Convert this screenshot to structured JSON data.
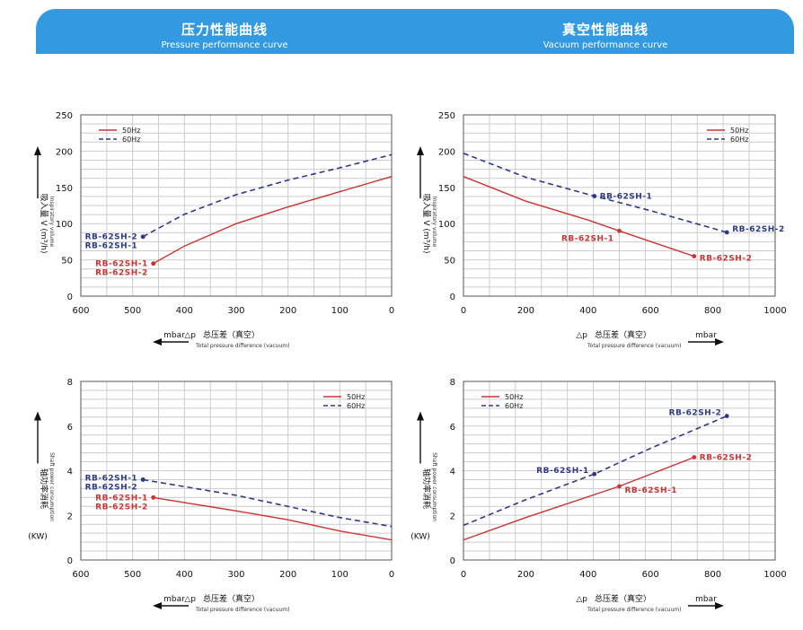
{
  "header": {
    "left_zh": "压力性能曲线",
    "left_en": "Pressure performance curve",
    "right_zh": "真空性能曲线",
    "right_en": "Vacuum performance curve"
  },
  "colors": {
    "banner": "#3399e0",
    "s50": "#cc3333",
    "s60": "#2e3a86",
    "grid": "#cccccc"
  },
  "chart_data": [
    {
      "type": "line",
      "title": "",
      "xlim": [
        600,
        0
      ],
      "ylim": [
        0,
        250
      ],
      "xticks": [
        600,
        500,
        400,
        300,
        200,
        100,
        0
      ],
      "yticks": [
        0,
        50,
        100,
        150,
        200,
        250
      ],
      "ylabel_zh": "吸入量 V (m³/h)",
      "ylabel_en": "Inspiratory volume",
      "unit": "",
      "xunit": "mbar",
      "xlabel_zh": "总压差（真空）",
      "xlabel_en": "Total pressure difference (vacuum)",
      "xlabel_delta": "△p",
      "legend": "top-left",
      "series": [
        {
          "name": "50Hz",
          "dash": false,
          "points": [
            [
              460,
              45
            ],
            [
              400,
              69
            ],
            [
              300,
              100
            ],
            [
              200,
              123
            ],
            [
              100,
              144
            ],
            [
              0,
              165
            ]
          ]
        },
        {
          "name": "60Hz",
          "dash": true,
          "points": [
            [
              480,
              82
            ],
            [
              400,
              113
            ],
            [
              300,
              140
            ],
            [
              200,
              160
            ],
            [
              100,
              177
            ],
            [
              0,
              195
            ]
          ]
        }
      ],
      "annotations": [
        {
          "text": "RB-62SH-2",
          "series": 1,
          "at": [
            480,
            82
          ],
          "side": "left",
          "dy": 0
        },
        {
          "text": "RB-62SH-1",
          "series": 1,
          "at": [
            480,
            82
          ],
          "side": "left",
          "dy": 10
        },
        {
          "text": "RB-62SH-1",
          "series": 0,
          "at": [
            460,
            45
          ],
          "side": "left",
          "dy": 0
        },
        {
          "text": "RB-62SH-2",
          "series": 0,
          "at": [
            460,
            45
          ],
          "side": "left",
          "dy": 10
        }
      ]
    },
    {
      "type": "line",
      "title": "",
      "xlim": [
        0,
        1000
      ],
      "ylim": [
        0,
        250
      ],
      "xticks": [
        0,
        200,
        400,
        600,
        800,
        1000
      ],
      "yticks": [
        0,
        50,
        100,
        150,
        200,
        250
      ],
      "ylabel_zh": "吸入量 V (m³/h)",
      "ylabel_en": "Inspiratory volume",
      "unit": "",
      "xunit": "mbar",
      "xlabel_zh": "总压差（真空）",
      "xlabel_en": "Total pressure difference (vacuum)",
      "xlabel_delta": "△p",
      "legend": "top-right",
      "series": [
        {
          "name": "50Hz",
          "dash": false,
          "points": [
            [
              0,
              165
            ],
            [
              200,
              131
            ],
            [
              400,
              105
            ],
            [
              500,
              90
            ],
            [
              740,
              55
            ]
          ]
        },
        {
          "name": "60Hz",
          "dash": true,
          "points": [
            [
              0,
              197
            ],
            [
              200,
              164
            ],
            [
              420,
              138
            ],
            [
              600,
              118
            ],
            [
              845,
              88
            ]
          ]
        }
      ],
      "annotations": [
        {
          "text": "RB-62SH-1",
          "series": 1,
          "at": [
            420,
            138
          ],
          "side": "right",
          "dy": 0
        },
        {
          "text": "RB-62SH-2",
          "series": 1,
          "at": [
            845,
            88
          ],
          "side": "right",
          "dy": -4
        },
        {
          "text": "RB-62SH-1",
          "series": 0,
          "at": [
            500,
            90
          ],
          "side": "left",
          "dy": 8
        },
        {
          "text": "RB-62SH-2",
          "series": 0,
          "at": [
            740,
            55
          ],
          "side": "right",
          "dy": 2
        }
      ]
    },
    {
      "type": "line",
      "title": "",
      "xlim": [
        600,
        0
      ],
      "ylim": [
        0,
        8
      ],
      "xticks": [
        600,
        500,
        400,
        300,
        200,
        100,
        0
      ],
      "yticks": [
        0,
        2,
        4,
        6,
        8
      ],
      "ylabel_zh": "轴功率消耗",
      "ylabel_en": "Shaft power consumption",
      "unit": "(KW)",
      "xunit": "mbar",
      "xlabel_zh": "总压差（真空）",
      "xlabel_en": "Total pressure difference (vacuum)",
      "xlabel_delta": "△p",
      "legend": "top-right",
      "series": [
        {
          "name": "50Hz",
          "dash": false,
          "points": [
            [
              460,
              2.8
            ],
            [
              300,
              2.2
            ],
            [
              200,
              1.8
            ],
            [
              100,
              1.3
            ],
            [
              0,
              0.9
            ]
          ]
        },
        {
          "name": "60Hz",
          "dash": true,
          "points": [
            [
              480,
              3.6
            ],
            [
              300,
              2.9
            ],
            [
              200,
              2.4
            ],
            [
              100,
              1.9
            ],
            [
              0,
              1.5
            ]
          ]
        }
      ],
      "annotations": [
        {
          "text": "RB-62SH-1",
          "series": 1,
          "at": [
            480,
            3.6
          ],
          "side": "left",
          "dy": -2
        },
        {
          "text": "RB-62SH-2",
          "series": 1,
          "at": [
            480,
            3.6
          ],
          "side": "left",
          "dy": 8
        },
        {
          "text": "RB-62SH-1",
          "series": 0,
          "at": [
            460,
            2.8
          ],
          "side": "left",
          "dy": 0
        },
        {
          "text": "RB-62SH-2",
          "series": 0,
          "at": [
            460,
            2.8
          ],
          "side": "left",
          "dy": 10
        }
      ]
    },
    {
      "type": "line",
      "title": "",
      "xlim": [
        0,
        1000
      ],
      "ylim": [
        0,
        8
      ],
      "xticks": [
        0,
        200,
        400,
        600,
        800,
        1000
      ],
      "yticks": [
        0,
        2,
        4,
        6,
        8
      ],
      "ylabel_zh": "轴功率消耗",
      "ylabel_en": "Shaft power consumption",
      "unit": "(KW)",
      "xunit": "mbar",
      "xlabel_zh": "总压差（真空）",
      "xlabel_en": "Total pressure difference (vacuum)",
      "xlabel_delta": "△p",
      "legend": "top-left",
      "series": [
        {
          "name": "50Hz",
          "dash": false,
          "points": [
            [
              0,
              0.9
            ],
            [
              200,
              1.9
            ],
            [
              500,
              3.3
            ],
            [
              740,
              4.6
            ]
          ]
        },
        {
          "name": "60Hz",
          "dash": true,
          "points": [
            [
              0,
              1.55
            ],
            [
              200,
              2.7
            ],
            [
              420,
              3.85
            ],
            [
              600,
              5.0
            ],
            [
              845,
              6.45
            ]
          ]
        }
      ],
      "annotations": [
        {
          "text": "RB-62SH-1",
          "series": 1,
          "at": [
            420,
            3.85
          ],
          "side": "left",
          "dy": -4
        },
        {
          "text": "RB-62SH-2",
          "series": 1,
          "at": [
            845,
            6.45
          ],
          "side": "left",
          "dy": -4
        },
        {
          "text": "RB-62SH-1",
          "series": 0,
          "at": [
            500,
            3.3
          ],
          "side": "right",
          "dy": 4
        },
        {
          "text": "RB-62SH-2",
          "series": 0,
          "at": [
            740,
            4.6
          ],
          "side": "right",
          "dy": 0
        }
      ]
    }
  ]
}
